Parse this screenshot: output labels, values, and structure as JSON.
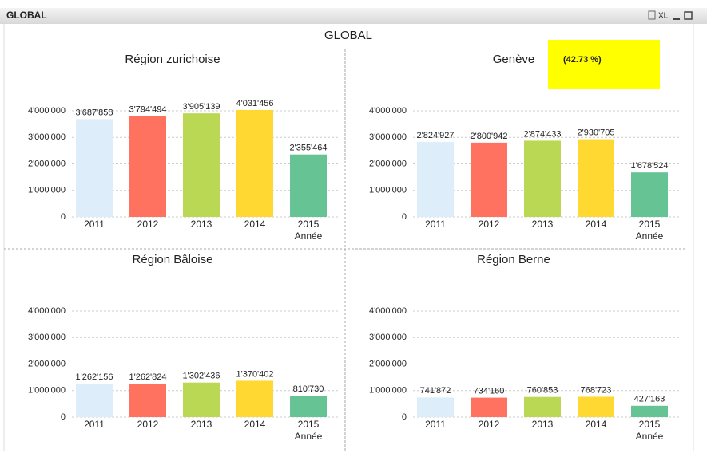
{
  "window": {
    "title": "GLOBAL",
    "export": "XL"
  },
  "title": "GLOBAL",
  "chart_data": [
    {
      "type": "bar",
      "title": "Région zurichoise",
      "categories": [
        "2011",
        "2012",
        "2013",
        "2014",
        "2015"
      ],
      "x_label": "Année",
      "values": [
        3687858,
        3794494,
        3905139,
        4031456,
        2355464
      ],
      "value_labels": [
        "3'687'858",
        "3'794'494",
        "3'905'139",
        "4'031'456",
        "2'355'464"
      ],
      "colors": [
        "#ddeefa",
        "#ff7260",
        "#bbd854",
        "#ffd832",
        "#66c394"
      ],
      "ylim": [
        0,
        4000000
      ],
      "yticks": [
        0,
        {
          "value": 1000000,
          "label": "1'000'000"
        },
        {
          "value": 2000000,
          "label": "2'000'000"
        },
        {
          "value": 3000000,
          "label": "3'000'000"
        },
        {
          "value": 4000000,
          "label": "4'000'000"
        }
      ],
      "grid": true
    },
    {
      "type": "bar",
      "title": "Genève",
      "annotation": "(42.73 %)",
      "categories": [
        "2011",
        "2012",
        "2013",
        "2014",
        "2015"
      ],
      "x_label": "Année",
      "values": [
        2824927,
        2800942,
        2874433,
        2930705,
        1678524
      ],
      "value_labels": [
        "2'824'927",
        "2'800'942",
        "2'874'433",
        "2'930'705",
        "1'678'524"
      ],
      "colors": [
        "#ddeefa",
        "#ff7260",
        "#bbd854",
        "#ffd832",
        "#66c394"
      ],
      "ylim": [
        0,
        4000000
      ],
      "yticks": [
        0,
        {
          "value": 1000000,
          "label": "1'000'000"
        },
        {
          "value": 2000000,
          "label": "2'000'000"
        },
        {
          "value": 3000000,
          "label": "3'000'000"
        },
        {
          "value": 4000000,
          "label": "4'000'000"
        }
      ],
      "grid": true
    },
    {
      "type": "bar",
      "title": "Région Bâloise",
      "categories": [
        "2011",
        "2012",
        "2013",
        "2014",
        "2015"
      ],
      "x_label": "Année",
      "values": [
        1262156,
        1262824,
        1302436,
        1370402,
        810730
      ],
      "value_labels": [
        "1'262'156",
        "1'262'824",
        "1'302'436",
        "1'370'402",
        "810'730"
      ],
      "colors": [
        "#ddeefa",
        "#ff7260",
        "#bbd854",
        "#ffd832",
        "#66c394"
      ],
      "ylim": [
        0,
        4000000
      ],
      "yticks": [
        0,
        {
          "value": 1000000,
          "label": "1'000'000"
        },
        {
          "value": 2000000,
          "label": "2'000'000"
        },
        {
          "value": 3000000,
          "label": "3'000'000"
        },
        {
          "value": 4000000,
          "label": "4'000'000"
        }
      ],
      "grid": true
    },
    {
      "type": "bar",
      "title": "Région Berne",
      "categories": [
        "2011",
        "2012",
        "2013",
        "2014",
        "2015"
      ],
      "x_label": "Année",
      "values": [
        741872,
        734160,
        760853,
        768723,
        427163
      ],
      "value_labels": [
        "741'872",
        "734'160",
        "760'853",
        "768'723",
        "427'163"
      ],
      "colors": [
        "#ddeefa",
        "#ff7260",
        "#bbd854",
        "#ffd832",
        "#66c394"
      ],
      "ylim": [
        0,
        4000000
      ],
      "yticks": [
        0,
        {
          "value": 1000000,
          "label": "1'000'000"
        },
        {
          "value": 2000000,
          "label": "2'000'000"
        },
        {
          "value": 3000000,
          "label": "3'000'000"
        },
        {
          "value": 4000000,
          "label": "4'000'000"
        }
      ],
      "grid": true
    }
  ]
}
